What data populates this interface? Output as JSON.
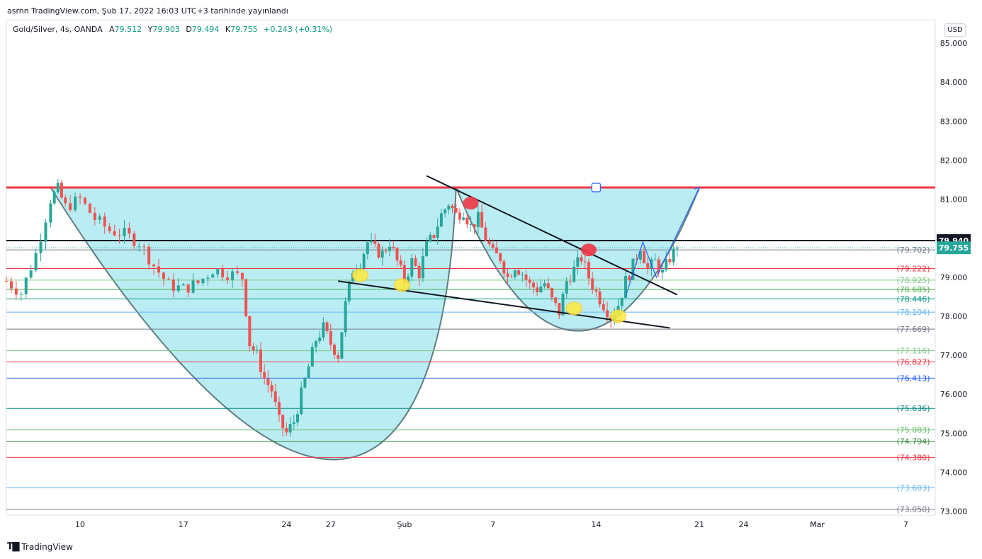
{
  "publication": "asrnn TradingView.com, Şub 17, 2022 16:03 UTC+3 tarihinde yayınlandı",
  "legend": {
    "symbol": "Gold/Silver, 4s, OANDA",
    "open_label": "A",
    "open": "79.512",
    "high_label": "Y",
    "high": "79.903",
    "low_label": "D",
    "low": "79.494",
    "close_label": "K",
    "close": "79.755",
    "change": "+0.243 (+0.31%)"
  },
  "currency_button": "USD",
  "brand": "TradingView",
  "colors": {
    "up": "#26a69a",
    "down": "#ef5350",
    "resistance": "#f23645",
    "cup_fill": "#b2ebf2",
    "cup_stroke": "#5f7d80",
    "trendline": "#131722",
    "projection": "#2962ff"
  },
  "chart_data": {
    "type": "candlestick",
    "ylim": [
      72.9,
      85.6
    ],
    "x_axis": {
      "range": [
        "2022-01-05",
        "2022-03-09"
      ],
      "ticks": [
        {
          "date": "2022-01-10",
          "label": "10"
        },
        {
          "date": "2022-01-17",
          "label": "17"
        },
        {
          "date": "2022-01-24",
          "label": "24"
        },
        {
          "date": "2022-01-27",
          "label": "27"
        },
        {
          "date": "2022-02-01",
          "label": "Şub"
        },
        {
          "date": "2022-02-07",
          "label": "7"
        },
        {
          "date": "2022-02-14",
          "label": "14"
        },
        {
          "date": "2022-02-21",
          "label": "21"
        },
        {
          "date": "2022-02-24",
          "label": "24"
        },
        {
          "date": "2022-03-01",
          "label": "Mar"
        },
        {
          "date": "2022-03-07",
          "label": "7"
        }
      ]
    },
    "y_ticks": [
      "85.000",
      "84.000",
      "83.000",
      "82.000",
      "81.000",
      "79.000",
      "78.000",
      "77.000",
      "76.000",
      "75.000",
      "74.000",
      "73.000"
    ],
    "last_price": {
      "value": 79.755,
      "label": "79.755"
    },
    "horizontal_line": {
      "value": 79.94,
      "label": "79.940"
    },
    "resistance": 81.3,
    "fib_levels": [
      {
        "value": 79.702,
        "label": "(79.702)",
        "color": "#787b86"
      },
      {
        "value": 79.222,
        "label": "(79.222)",
        "color": "#f23645"
      },
      {
        "value": 78.925,
        "label": "(78.925)",
        "color": "#81c784"
      },
      {
        "value": 78.685,
        "label": "(78.685)",
        "color": "#4caf50"
      },
      {
        "value": 78.446,
        "label": "(78.446)",
        "color": "#089981"
      },
      {
        "value": 78.104,
        "label": "(78.104)",
        "color": "#64b5f6"
      },
      {
        "value": 77.669,
        "label": "(77.669)",
        "color": "#787b86"
      },
      {
        "value": 77.116,
        "label": "(77.116)",
        "color": "#81c784"
      },
      {
        "value": 76.827,
        "label": "(76.827)",
        "color": "#f23645"
      },
      {
        "value": 76.413,
        "label": "(76.413)",
        "color": "#2962ff"
      },
      {
        "value": 75.636,
        "label": "(75.636)",
        "color": "#00897b"
      },
      {
        "value": 75.083,
        "label": "(75.083)",
        "color": "#66bb6a"
      },
      {
        "value": 74.794,
        "label": "(74.794)",
        "color": "#388e3c"
      },
      {
        "value": 74.38,
        "label": "(74.380)",
        "color": "#f23645"
      },
      {
        "value": 73.603,
        "label": "(73.603)",
        "color": "#64b5f6"
      },
      {
        "value": 73.05,
        "label": "(73.050)",
        "color": "#787b86"
      }
    ],
    "price_path": [
      [
        "2022-01-05T00:00",
        78.9
      ],
      [
        "2022-01-06T00:00",
        78.6
      ],
      [
        "2022-01-07T00:00",
        79.6
      ],
      [
        "2022-01-08T00:00",
        81.0
      ],
      [
        "2022-01-08T12:00",
        81.25
      ],
      [
        "2022-01-09T00:00",
        80.8
      ],
      [
        "2022-01-10T00:00",
        81.0
      ],
      [
        "2022-01-11T00:00",
        80.5
      ],
      [
        "2022-01-12T00:00",
        80.2
      ],
      [
        "2022-01-13T00:00",
        80.1
      ],
      [
        "2022-01-14T00:00",
        79.9
      ],
      [
        "2022-01-15T00:00",
        79.3
      ],
      [
        "2022-01-16T00:00",
        78.8
      ],
      [
        "2022-01-17T00:00",
        78.7
      ],
      [
        "2022-01-18T00:00",
        78.85
      ],
      [
        "2022-01-19T00:00",
        79.2
      ],
      [
        "2022-01-20T00:00",
        79.1
      ],
      [
        "2022-01-21T00:00",
        79.0
      ],
      [
        "2022-01-21T12:00",
        77.3
      ],
      [
        "2022-01-22T00:00",
        77.0
      ],
      [
        "2022-01-22T12:00",
        76.4
      ],
      [
        "2022-01-23T00:00",
        76.1
      ],
      [
        "2022-01-23T12:00",
        75.3
      ],
      [
        "2022-01-24T00:00",
        75.0
      ],
      [
        "2022-01-24T12:00",
        75.3
      ],
      [
        "2022-01-25T00:00",
        76.0
      ],
      [
        "2022-01-25T12:00",
        76.7
      ],
      [
        "2022-01-26T00:00",
        77.4
      ],
      [
        "2022-01-26T12:00",
        77.7
      ],
      [
        "2022-01-27T00:00",
        77.3
      ],
      [
        "2022-01-27T12:00",
        77.0
      ],
      [
        "2022-01-28T00:00",
        78.3
      ],
      [
        "2022-01-28T12:00",
        79.2
      ],
      [
        "2022-01-29T00:00",
        79.4
      ],
      [
        "2022-01-29T12:00",
        79.9
      ],
      [
        "2022-01-30T00:00",
        79.7
      ],
      [
        "2022-01-30T12:00",
        79.6
      ],
      [
        "2022-01-31T00:00",
        79.9
      ],
      [
        "2022-01-31T12:00",
        79.4
      ],
      [
        "2022-02-01T00:00",
        78.9
      ],
      [
        "2022-02-01T12:00",
        79.4
      ],
      [
        "2022-02-02T00:00",
        79.1
      ],
      [
        "2022-02-02T12:00",
        79.8
      ],
      [
        "2022-02-03T00:00",
        80.1
      ],
      [
        "2022-02-03T12:00",
        80.6
      ],
      [
        "2022-02-04T00:00",
        80.9
      ],
      [
        "2022-02-04T12:00",
        80.6
      ],
      [
        "2022-02-05T00:00",
        80.7
      ],
      [
        "2022-02-05T12:00",
        80.3
      ],
      [
        "2022-02-06T00:00",
        80.5
      ],
      [
        "2022-02-06T12:00",
        80.0
      ],
      [
        "2022-02-07T00:00",
        79.6
      ],
      [
        "2022-02-07T12:00",
        79.5
      ],
      [
        "2022-02-08T00:00",
        79.0
      ],
      [
        "2022-02-08T12:00",
        79.3
      ],
      [
        "2022-02-09T00:00",
        79.1
      ],
      [
        "2022-02-09T12:00",
        78.8
      ],
      [
        "2022-02-10T00:00",
        78.7
      ],
      [
        "2022-02-10T12:00",
        78.85
      ],
      [
        "2022-02-11T00:00",
        78.4
      ],
      [
        "2022-02-11T12:00",
        78.1
      ],
      [
        "2022-02-12T00:00",
        78.9
      ],
      [
        "2022-02-12T12:00",
        79.2
      ],
      [
        "2022-02-13T00:00",
        79.5
      ],
      [
        "2022-02-13T12:00",
        79.0
      ],
      [
        "2022-02-14T00:00",
        78.6
      ],
      [
        "2022-02-14T12:00",
        78.3
      ],
      [
        "2022-02-15T00:00",
        78.0
      ],
      [
        "2022-02-15T12:00",
        78.3
      ],
      [
        "2022-02-16T00:00",
        78.9
      ],
      [
        "2022-02-16T12:00",
        79.3
      ],
      [
        "2022-02-17T00:00",
        79.8
      ],
      [
        "2022-02-17T12:00",
        79.2
      ],
      [
        "2022-02-18T00:00",
        79.4
      ],
      [
        "2022-02-18T12:00",
        79.1
      ],
      [
        "2022-02-19T00:00",
        79.5
      ],
      [
        "2022-02-19T12:00",
        79.755
      ]
    ]
  }
}
